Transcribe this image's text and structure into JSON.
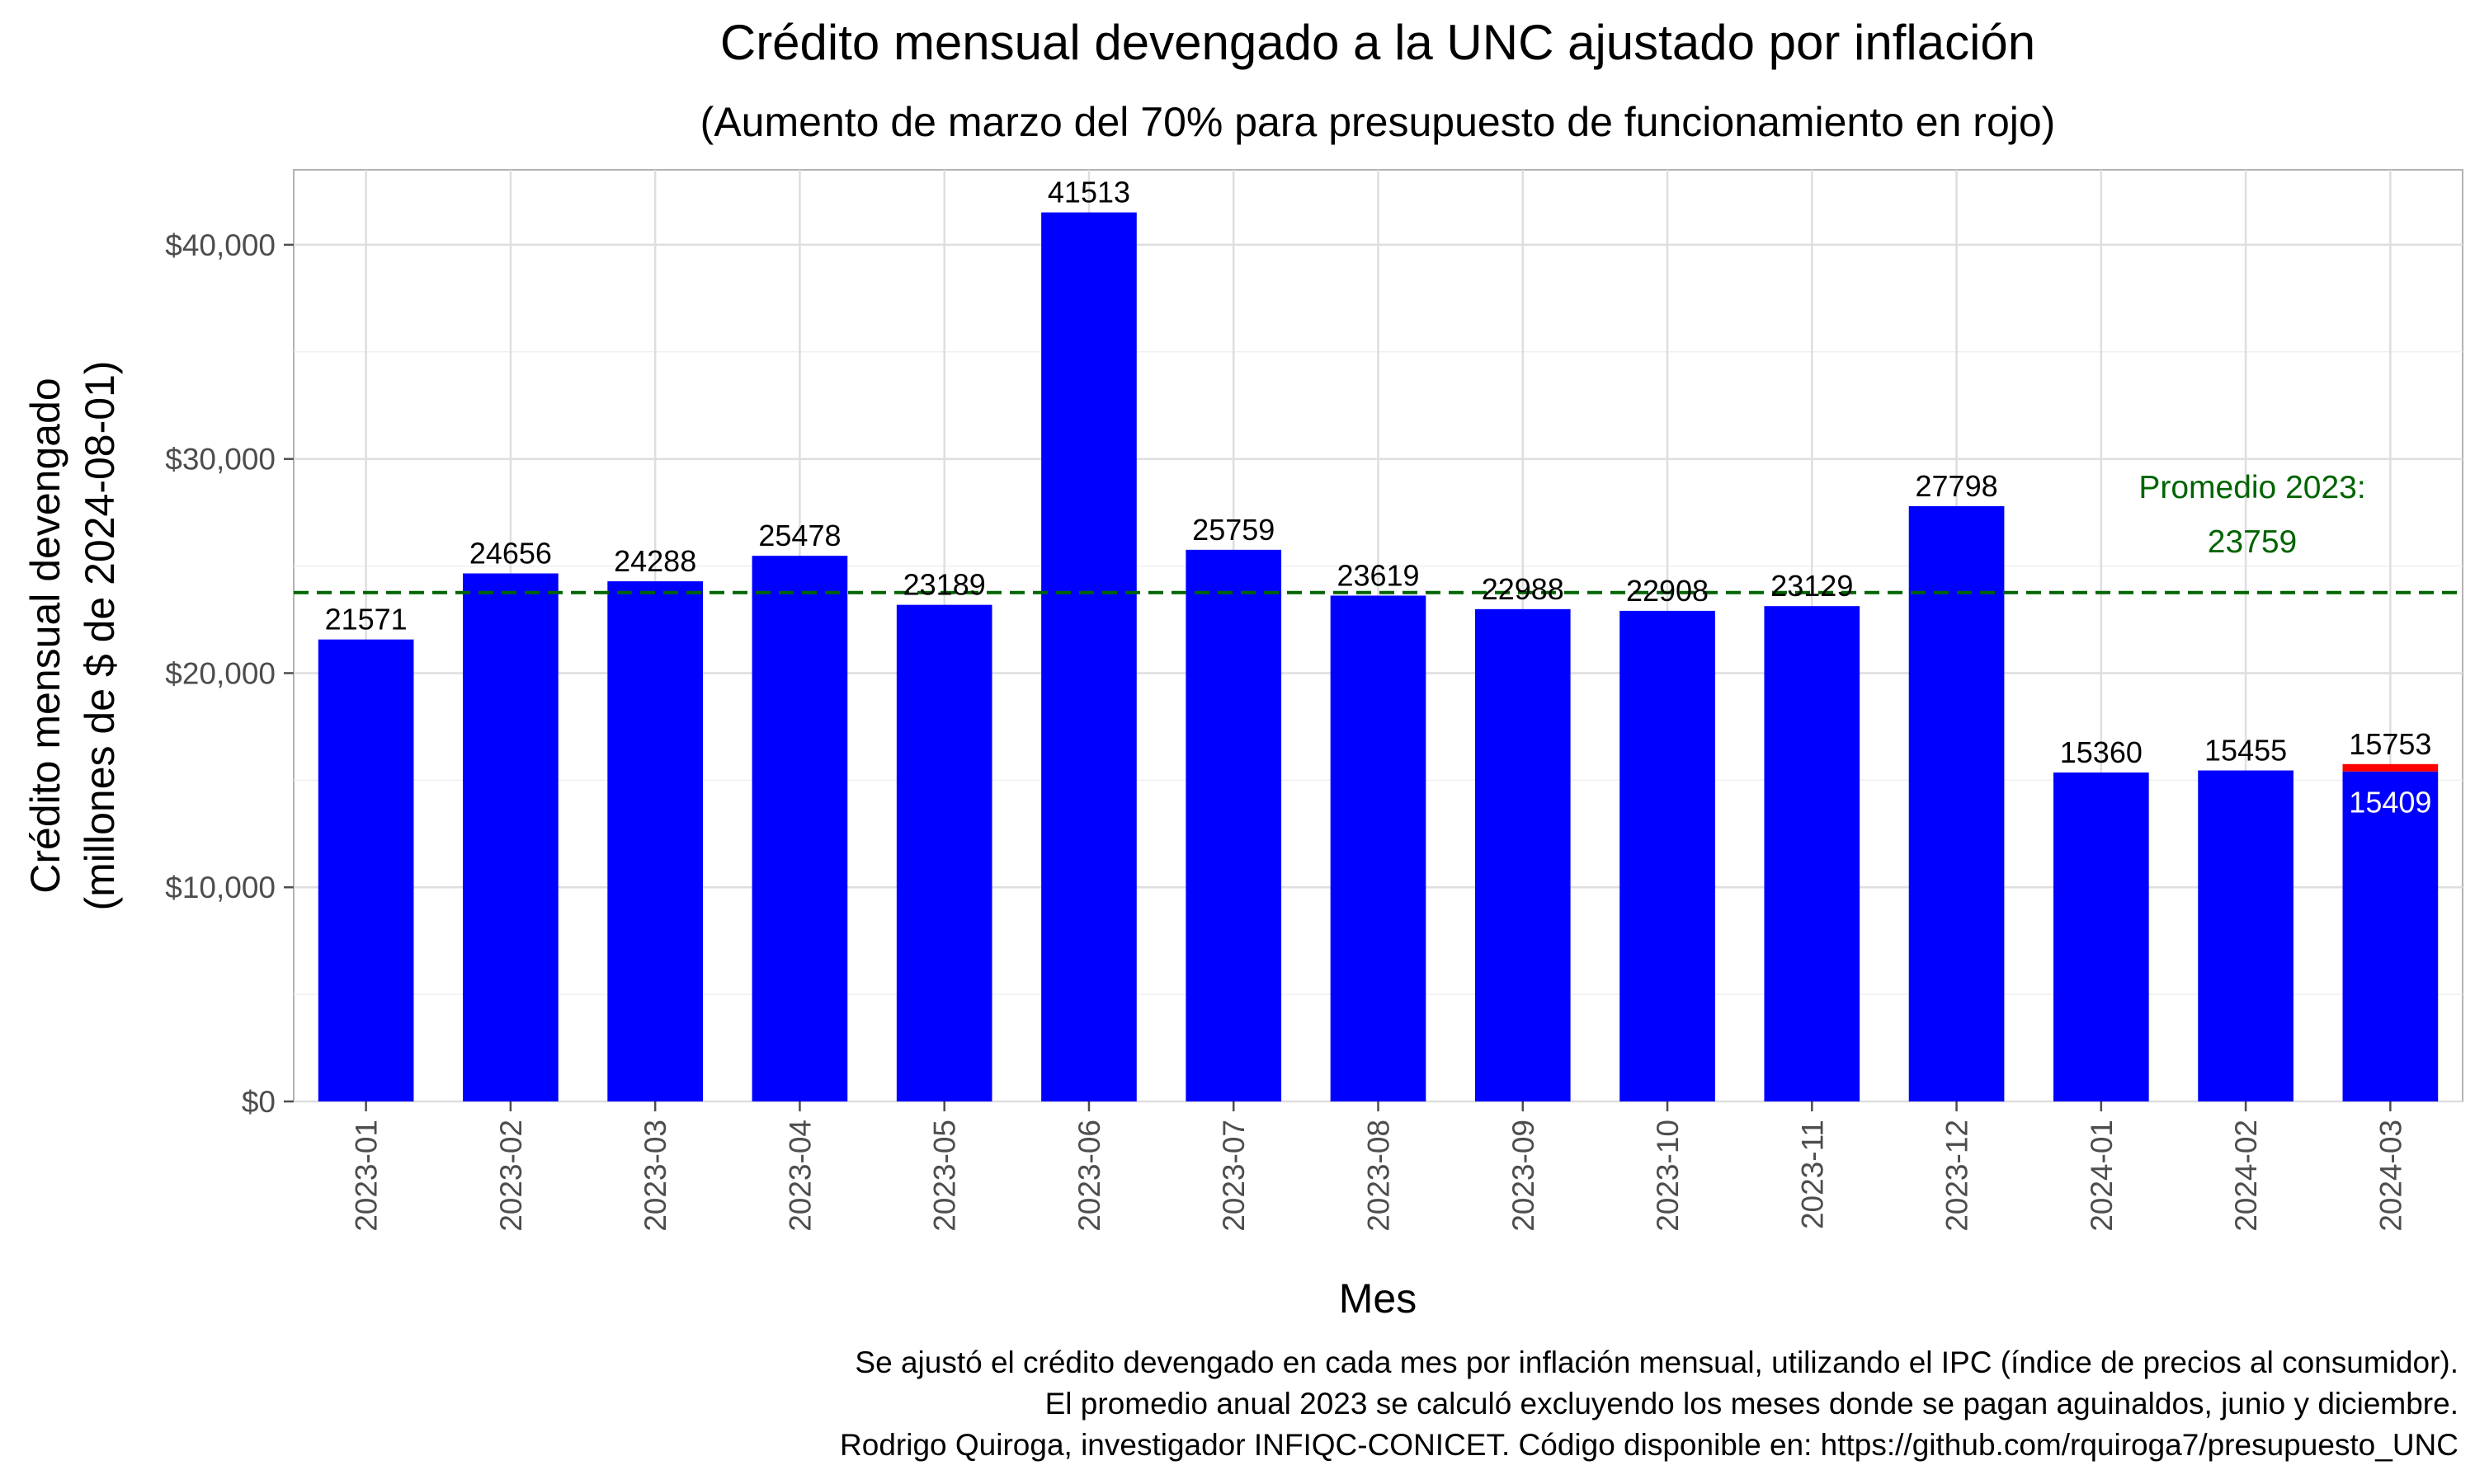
{
  "chart_data": {
    "type": "bar",
    "title": "Crédito mensual devengado a la UNC ajustado por inflación",
    "subtitle": "(Aumento de marzo del 70% para presupuesto de funcionamiento en rojo)",
    "xlabel": "Mes",
    "ylabel_line1": "Crédito mensual devengado",
    "ylabel_line2": "(millones de $ de 2024-08-01)",
    "ylim": [
      0,
      43500
    ],
    "yticks": [
      0,
      10000,
      20000,
      30000,
      40000
    ],
    "ytick_labels": [
      "$0",
      "$10,000",
      "$20,000",
      "$30,000",
      "$40,000"
    ],
    "categories": [
      "2023-01",
      "2023-02",
      "2023-03",
      "2023-04",
      "2023-05",
      "2023-06",
      "2023-07",
      "2023-08",
      "2023-09",
      "2023-10",
      "2023-11",
      "2023-12",
      "2024-01",
      "2024-02",
      "2024-03"
    ],
    "values": [
      21571,
      24656,
      24288,
      25478,
      23189,
      41513,
      25759,
      23619,
      22988,
      22908,
      23129,
      27798,
      15360,
      15455,
      15753
    ],
    "value_labels": [
      "21571",
      "24656",
      "24288",
      "25478",
      "23189",
      "41513",
      "25759",
      "23619",
      "22988",
      "22908",
      "23129",
      "27798",
      "15360",
      "15455",
      "15753"
    ],
    "stacked_base": {
      "category": "2024-03",
      "value": 15409,
      "label": "15409"
    },
    "colors": {
      "bar": "#0000ff",
      "increase": "#ff0000",
      "average_line": "#006400"
    },
    "average": {
      "value": 23759,
      "label_line1": "Promedio 2023:",
      "label_line2": "23759"
    },
    "grid": true
  },
  "caption": {
    "line1": "Se ajustó el crédito devengado en cada mes por inflación mensual, utilizando el IPC (índice de precios al consumidor).",
    "line2": "El promedio anual 2023 se calculó excluyendo los meses donde se pagan aguinaldos, junio y diciembre.",
    "line3": "Rodrigo Quiroga, investigador INFIQC-CONICET. Código disponible en: https://github.com/rquiroga7/presupuesto_UNC"
  }
}
